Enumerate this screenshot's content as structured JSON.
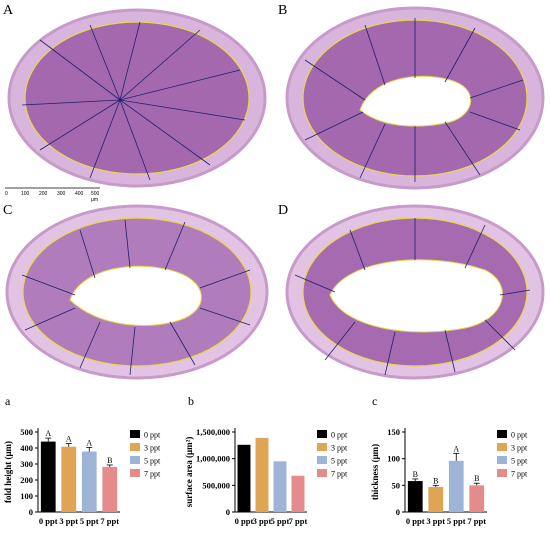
{
  "micrographs": {
    "letters": [
      "A",
      "B",
      "C",
      "D"
    ],
    "scale_labels": [
      "0",
      "100",
      "200",
      "300",
      "400",
      "500 μm"
    ]
  },
  "charts_meta": {
    "letters": [
      "a",
      "b",
      "c"
    ]
  },
  "chart_data": [
    {
      "type": "bar",
      "categories": [
        "0 ppt",
        "3 ppt",
        "5 ppt",
        "7 ppt"
      ],
      "values": [
        440,
        408,
        378,
        282
      ],
      "errors": [
        22,
        20,
        25,
        12
      ],
      "sig_letters": [
        "A",
        "A",
        "A",
        "B"
      ],
      "title": "",
      "xlabel": "",
      "ylabel": "fold height (μm)",
      "ylim": [
        0,
        500
      ],
      "yticks": [
        "0",
        "100",
        "200",
        "300",
        "400",
        "500"
      ],
      "legend": [
        "0 ppt",
        "3 ppt",
        "5 ppt",
        "7 ppt"
      ],
      "legend_position": "right",
      "grid": false
    },
    {
      "type": "bar",
      "categories": [
        "0 ppt",
        "3 ppt",
        "5 ppt",
        "7 ppt"
      ],
      "values": [
        1260000,
        1390000,
        950000,
        680000
      ],
      "errors": [
        0,
        0,
        0,
        0
      ],
      "sig_letters": [
        "",
        "",
        "",
        ""
      ],
      "title": "",
      "xlabel": "",
      "ylabel": "surface area (μm²)",
      "ylim": [
        0,
        1500000
      ],
      "yticks": [
        "0",
        "500,000",
        "1,000,000",
        "1,500,000"
      ],
      "legend": [
        "0 ppt",
        "3 ppt",
        "5 ppt",
        "7 ppt"
      ],
      "legend_position": "right",
      "grid": false
    },
    {
      "type": "bar",
      "categories": [
        "0 ppt",
        "3 ppt",
        "5 ppt",
        "7 ppt"
      ],
      "values": [
        58,
        47,
        96,
        50
      ],
      "errors": [
        4,
        3,
        14,
        4
      ],
      "sig_letters": [
        "B",
        "B",
        "A",
        "B"
      ],
      "title": "",
      "xlabel": "",
      "ylabel": "thickness (μm)",
      "ylim": [
        0,
        150
      ],
      "yticks": [
        "0",
        "50",
        "100",
        "150"
      ],
      "legend": [
        "0 ppt",
        "3 ppt",
        "5 ppt",
        "7 ppt"
      ],
      "legend_position": "right",
      "grid": false
    }
  ],
  "colors": {
    "series": [
      "#000000",
      "#e0a455",
      "#9eb4d6",
      "#e58b8b"
    ],
    "tissue": "#b57ab9",
    "tissue_light": "#e2c3e3",
    "measure": "#e8d84a",
    "line": "#1f1f6e"
  }
}
